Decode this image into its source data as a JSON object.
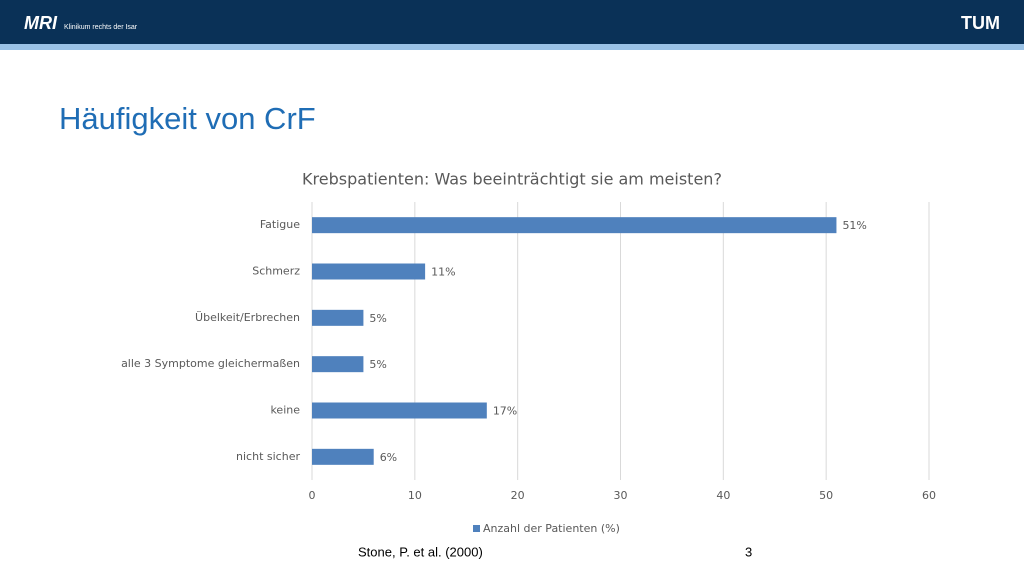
{
  "header": {
    "logo_left": "MRI",
    "institution": "Klinikum rechts der Isar",
    "logo_right": "TUM"
  },
  "slide_title": "Häufigkeit von CrF",
  "chart_data": {
    "type": "bar",
    "orientation": "horizontal",
    "title": "Krebspatienten: Was beeinträchtigt sie am meisten?",
    "categories": [
      "Fatigue",
      "Schmerz",
      "Übelkeit/Erbrechen",
      "alle 3 Symptome gleichermaßen",
      "keine",
      "nicht sicher"
    ],
    "series": [
      {
        "name": "Anzahl der Patienten (%)",
        "color": "#4f81bd",
        "values": [
          51,
          11,
          5,
          5,
          17,
          6
        ],
        "value_labels": [
          "51%",
          "11%",
          "5%",
          "5%",
          "17%",
          "6%"
        ]
      }
    ],
    "xlim": [
      0,
      60
    ],
    "xticks": [
      0,
      10,
      20,
      30,
      40,
      50,
      60
    ],
    "grid": true,
    "legend": "bottom"
  },
  "footer": {
    "citation": "Stone, P. et al. (2000)",
    "page_number": "3"
  }
}
